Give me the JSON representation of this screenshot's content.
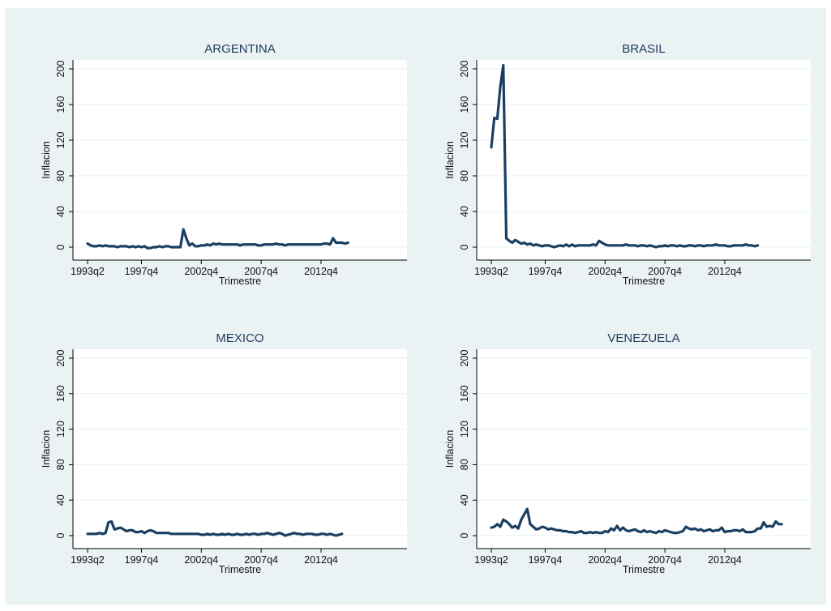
{
  "chart_data": [
    {
      "type": "line",
      "title": "ARGENTINA",
      "xlabel": "Trimestre",
      "ylabel": "Inflacion",
      "ylim": [
        0,
        200
      ],
      "yticks": [
        0,
        40,
        80,
        120,
        160,
        200
      ],
      "xticks": [
        "1993q2",
        "1997q4",
        "2002q4",
        "2007q4",
        "2012q4"
      ],
      "grid": true,
      "series": [
        {
          "x_start": "1993q2",
          "values": [
            4,
            2,
            1,
            1,
            2,
            1,
            2,
            1,
            1,
            1,
            0,
            1,
            1,
            1,
            0,
            1,
            0,
            1,
            0,
            1,
            -1,
            -1,
            0,
            0,
            1,
            0,
            1,
            1,
            0,
            0,
            0,
            0,
            20,
            10,
            2,
            4,
            1,
            1,
            2,
            2,
            3,
            2,
            4,
            3,
            4,
            3,
            3,
            3,
            3,
            3,
            3,
            2,
            3,
            3,
            3,
            3,
            3,
            2,
            2,
            3,
            3,
            3,
            3,
            4,
            3,
            3,
            2,
            3,
            3,
            3,
            3,
            3,
            3,
            3,
            3,
            3,
            3,
            3,
            3,
            4,
            4,
            3,
            10,
            5,
            5,
            5,
            4,
            5
          ]
        }
      ]
    },
    {
      "type": "line",
      "title": "BRASIL",
      "xlabel": "Trimestre",
      "ylabel": "Inflacion",
      "ylim": [
        0,
        200
      ],
      "yticks": [
        0,
        40,
        80,
        120,
        160,
        200
      ],
      "xticks": [
        "1993q2",
        "1997q4",
        "2002q4",
        "2007q4",
        "2012q4"
      ],
      "grid": true,
      "series": [
        {
          "x_start": "1993q2",
          "values": [
            112,
            145,
            144,
            180,
            204,
            10,
            7,
            5,
            8,
            6,
            4,
            5,
            3,
            4,
            2,
            3,
            2,
            1,
            2,
            2,
            1,
            0,
            1,
            2,
            1,
            3,
            1,
            3,
            1,
            2,
            2,
            2,
            2,
            2,
            3,
            2,
            7,
            5,
            3,
            2,
            2,
            2,
            2,
            2,
            2,
            3,
            2,
            2,
            2,
            1,
            2,
            2,
            1,
            2,
            1,
            0,
            1,
            1,
            2,
            1,
            2,
            2,
            1,
            2,
            1,
            1,
            2,
            2,
            1,
            2,
            2,
            1,
            2,
            2,
            2,
            3,
            2,
            2,
            2,
            1,
            1,
            2,
            2,
            2,
            2,
            3,
            2,
            2,
            1,
            2
          ]
        }
      ]
    },
    {
      "type": "line",
      "title": "MEXICO",
      "xlabel": "Trimestre",
      "ylabel": "Inflacion",
      "ylim": [
        0,
        200
      ],
      "yticks": [
        0,
        40,
        80,
        120,
        160,
        200
      ],
      "xticks": [
        "1993q2",
        "1997q4",
        "2002q4",
        "2007q4",
        "2012q4"
      ],
      "grid": true,
      "series": [
        {
          "x_start": "1993q2",
          "values": [
            2,
            2,
            2,
            2,
            3,
            2,
            3,
            15,
            16,
            7,
            8,
            9,
            7,
            5,
            6,
            6,
            4,
            4,
            5,
            3,
            5,
            6,
            5,
            3,
            3,
            3,
            3,
            3,
            2,
            2,
            2,
            2,
            2,
            2,
            2,
            2,
            2,
            2,
            1,
            1,
            2,
            1,
            2,
            1,
            1,
            2,
            1,
            2,
            1,
            1,
            2,
            1,
            1,
            2,
            1,
            2,
            2,
            1,
            2,
            2,
            3,
            2,
            1,
            2,
            3,
            2,
            0,
            1,
            2,
            3,
            2,
            2,
            1,
            2,
            2,
            2,
            1,
            1,
            2,
            2,
            1,
            2,
            1,
            0,
            1,
            2
          ]
        }
      ]
    },
    {
      "type": "line",
      "title": "VENEZUELA",
      "xlabel": "Trimestre",
      "ylabel": "Inflacion",
      "ylim": [
        0,
        200
      ],
      "yticks": [
        0,
        40,
        80,
        120,
        160,
        200
      ],
      "xticks": [
        "1993q2",
        "1997q4",
        "2002q4",
        "2007q4",
        "2012q4"
      ],
      "grid": true,
      "series": [
        {
          "x_start": "1993q2",
          "values": [
            9,
            10,
            13,
            10,
            18,
            16,
            13,
            9,
            11,
            8,
            18,
            24,
            30,
            13,
            10,
            7,
            8,
            10,
            9,
            7,
            8,
            7,
            6,
            6,
            5,
            5,
            4,
            4,
            3,
            4,
            5,
            3,
            3,
            4,
            3,
            4,
            3,
            3,
            5,
            4,
            8,
            6,
            11,
            6,
            9,
            6,
            5,
            6,
            7,
            5,
            4,
            6,
            4,
            5,
            4,
            3,
            5,
            4,
            6,
            5,
            4,
            3,
            3,
            4,
            5,
            10,
            8,
            7,
            8,
            6,
            7,
            5,
            6,
            7,
            5,
            6,
            6,
            9,
            4,
            5,
            5,
            6,
            6,
            5,
            7,
            4,
            4,
            4,
            5,
            8,
            8,
            15,
            10,
            11,
            10,
            16,
            13,
            13
          ]
        }
      ]
    }
  ]
}
